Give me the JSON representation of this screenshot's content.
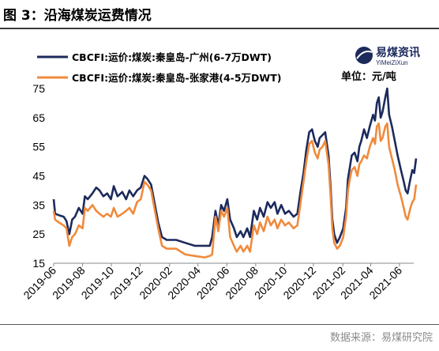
{
  "header": {
    "figure_label": "图 3：",
    "title": "沿海煤炭运费情况"
  },
  "source": "数据来源：易煤研究院",
  "logo": {
    "name": "易煤资讯",
    "subtitle": "YiMeiZiXun"
  },
  "chart_data": {
    "type": "line",
    "unit_label": "单位：元/吨",
    "ylim": [
      15,
      75
    ],
    "yticks": [
      15,
      25,
      35,
      45,
      55,
      65,
      75
    ],
    "x_range": [
      "2019-06",
      "2021-07"
    ],
    "xticks": [
      "2019-06",
      "2019-08",
      "2019-10",
      "2019-12",
      "2020-02",
      "2020-04",
      "2020-06",
      "2020-08",
      "2020-10",
      "2020-12",
      "2021-02",
      "2021-04",
      "2021-06"
    ],
    "grid": false,
    "legend_position": "top-left",
    "series": [
      {
        "name": "CBCFI:运价:煤炭:秦皇岛-广州(6-7万DWT)",
        "color": "#1c2a5c",
        "points": [
          [
            "2019-06-01",
            37
          ],
          [
            "2019-06-04",
            32
          ],
          [
            "2019-06-12",
            31.5
          ],
          [
            "2019-06-22",
            31
          ],
          [
            "2019-06-28",
            29.5
          ],
          [
            "2019-07-04",
            25
          ],
          [
            "2019-07-10",
            30
          ],
          [
            "2019-07-16",
            31
          ],
          [
            "2019-07-24",
            34
          ],
          [
            "2019-08-01",
            32
          ],
          [
            "2019-08-06",
            38
          ],
          [
            "2019-08-12",
            37
          ],
          [
            "2019-08-22",
            39
          ],
          [
            "2019-08-30",
            41
          ],
          [
            "2019-09-06",
            40
          ],
          [
            "2019-09-14",
            38
          ],
          [
            "2019-09-22",
            39
          ],
          [
            "2019-09-30",
            37
          ],
          [
            "2019-10-06",
            41.5
          ],
          [
            "2019-10-14",
            38
          ],
          [
            "2019-10-24",
            39.5
          ],
          [
            "2019-11-01",
            37
          ],
          [
            "2019-11-08",
            40
          ],
          [
            "2019-11-16",
            38
          ],
          [
            "2019-11-24",
            40
          ],
          [
            "2019-12-02",
            41
          ],
          [
            "2019-12-10",
            45
          ],
          [
            "2019-12-16",
            44
          ],
          [
            "2019-12-24",
            42
          ],
          [
            "2020-01-01",
            35
          ],
          [
            "2020-01-08",
            29
          ],
          [
            "2020-01-16",
            24
          ],
          [
            "2020-01-26",
            23
          ],
          [
            "2020-02-15",
            23
          ],
          [
            "2020-03-05",
            22
          ],
          [
            "2020-03-25",
            21
          ],
          [
            "2020-04-15",
            21
          ],
          [
            "2020-04-26",
            21
          ],
          [
            "2020-05-01",
            24
          ],
          [
            "2020-05-08",
            33
          ],
          [
            "2020-05-14",
            28
          ],
          [
            "2020-05-20",
            35
          ],
          [
            "2020-05-26",
            33
          ],
          [
            "2020-06-02",
            37
          ],
          [
            "2020-06-08",
            30
          ],
          [
            "2020-06-16",
            27
          ],
          [
            "2020-06-22",
            24
          ],
          [
            "2020-06-30",
            26
          ],
          [
            "2020-07-06",
            24
          ],
          [
            "2020-07-14",
            27
          ],
          [
            "2020-07-20",
            24
          ],
          [
            "2020-07-28",
            33
          ],
          [
            "2020-08-04",
            30
          ],
          [
            "2020-08-10",
            34
          ],
          [
            "2020-08-18",
            31
          ],
          [
            "2020-08-26",
            36
          ],
          [
            "2020-09-02",
            34
          ],
          [
            "2020-09-10",
            36
          ],
          [
            "2020-09-16",
            32
          ],
          [
            "2020-09-24",
            35
          ],
          [
            "2020-10-02",
            32
          ],
          [
            "2020-10-10",
            33
          ],
          [
            "2020-10-20",
            31
          ],
          [
            "2020-10-28",
            32
          ],
          [
            "2020-11-04",
            40
          ],
          [
            "2020-11-10",
            46
          ],
          [
            "2020-11-16",
            54
          ],
          [
            "2020-11-22",
            60
          ],
          [
            "2020-11-28",
            61
          ],
          [
            "2020-12-04",
            57
          ],
          [
            "2020-12-10",
            55
          ],
          [
            "2020-12-14",
            58
          ],
          [
            "2020-12-20",
            59
          ],
          [
            "2020-12-26",
            60
          ],
          [
            "2021-01-02",
            52
          ],
          [
            "2021-01-06",
            42
          ],
          [
            "2021-01-10",
            30
          ],
          [
            "2021-01-14",
            25
          ],
          [
            "2021-01-20",
            22
          ],
          [
            "2021-01-26",
            24
          ],
          [
            "2021-02-02",
            27
          ],
          [
            "2021-02-08",
            34
          ],
          [
            "2021-02-12",
            44
          ],
          [
            "2021-02-16",
            48
          ],
          [
            "2021-02-20",
            52
          ],
          [
            "2021-02-26",
            53
          ],
          [
            "2021-03-04",
            50
          ],
          [
            "2021-03-08",
            55
          ],
          [
            "2021-03-12",
            57
          ],
          [
            "2021-03-18",
            61
          ],
          [
            "2021-03-24",
            58
          ],
          [
            "2021-03-30",
            62
          ],
          [
            "2021-04-06",
            66
          ],
          [
            "2021-04-10",
            64
          ],
          [
            "2021-04-14",
            70
          ],
          [
            "2021-04-18",
            72
          ],
          [
            "2021-04-22",
            65
          ],
          [
            "2021-04-26",
            67
          ],
          [
            "2021-05-02",
            72
          ],
          [
            "2021-05-06",
            75
          ],
          [
            "2021-05-10",
            66
          ],
          [
            "2021-05-16",
            62
          ],
          [
            "2021-05-22",
            57
          ],
          [
            "2021-05-28",
            52
          ],
          [
            "2021-06-04",
            47
          ],
          [
            "2021-06-10",
            43
          ],
          [
            "2021-06-14",
            40
          ],
          [
            "2021-06-18",
            39
          ],
          [
            "2021-06-24",
            44
          ],
          [
            "2021-06-28",
            47
          ],
          [
            "2021-07-02",
            46
          ],
          [
            "2021-07-06",
            51
          ]
        ]
      },
      {
        "name": "CBCFI:运价:煤炭:秦皇岛-张家港(4-5万DWT)",
        "color": "#f08a3c",
        "points": [
          [
            "2019-06-01",
            33
          ],
          [
            "2019-06-04",
            30
          ],
          [
            "2019-06-12",
            29
          ],
          [
            "2019-06-22",
            28
          ],
          [
            "2019-06-28",
            27
          ],
          [
            "2019-07-04",
            21
          ],
          [
            "2019-07-10",
            24
          ],
          [
            "2019-07-16",
            25
          ],
          [
            "2019-07-24",
            28
          ],
          [
            "2019-08-01",
            27
          ],
          [
            "2019-08-06",
            34
          ],
          [
            "2019-08-12",
            33
          ],
          [
            "2019-08-22",
            35
          ],
          [
            "2019-08-30",
            33
          ],
          [
            "2019-09-06",
            32
          ],
          [
            "2019-09-14",
            31
          ],
          [
            "2019-09-22",
            32
          ],
          [
            "2019-09-30",
            31
          ],
          [
            "2019-10-06",
            34
          ],
          [
            "2019-10-14",
            31
          ],
          [
            "2019-10-24",
            32
          ],
          [
            "2019-11-01",
            33
          ],
          [
            "2019-11-08",
            34
          ],
          [
            "2019-11-16",
            32
          ],
          [
            "2019-11-24",
            36
          ],
          [
            "2019-12-02",
            37
          ],
          [
            "2019-12-10",
            43
          ],
          [
            "2019-12-16",
            42
          ],
          [
            "2019-12-24",
            40
          ],
          [
            "2020-01-01",
            33
          ],
          [
            "2020-01-08",
            27
          ],
          [
            "2020-01-16",
            21
          ],
          [
            "2020-01-26",
            20
          ],
          [
            "2020-02-15",
            20
          ],
          [
            "2020-03-05",
            18
          ],
          [
            "2020-03-25",
            17.5
          ],
          [
            "2020-04-15",
            17
          ],
          [
            "2020-04-26",
            17.5
          ],
          [
            "2020-05-01",
            18
          ],
          [
            "2020-05-08",
            31
          ],
          [
            "2020-05-14",
            26
          ],
          [
            "2020-05-20",
            33
          ],
          [
            "2020-05-26",
            31
          ],
          [
            "2020-06-02",
            34
          ],
          [
            "2020-06-08",
            24
          ],
          [
            "2020-06-16",
            21
          ],
          [
            "2020-06-22",
            19
          ],
          [
            "2020-06-30",
            21
          ],
          [
            "2020-07-06",
            19
          ],
          [
            "2020-07-14",
            21
          ],
          [
            "2020-07-20",
            19
          ],
          [
            "2020-07-28",
            28
          ],
          [
            "2020-08-04",
            25
          ],
          [
            "2020-08-10",
            29
          ],
          [
            "2020-08-18",
            26
          ],
          [
            "2020-08-26",
            31
          ],
          [
            "2020-09-02",
            28
          ],
          [
            "2020-09-10",
            30
          ],
          [
            "2020-09-16",
            27
          ],
          [
            "2020-09-24",
            30
          ],
          [
            "2020-10-02",
            28
          ],
          [
            "2020-10-10",
            29
          ],
          [
            "2020-10-20",
            27
          ],
          [
            "2020-10-28",
            28
          ],
          [
            "2020-11-04",
            36
          ],
          [
            "2020-11-10",
            43
          ],
          [
            "2020-11-16",
            50
          ],
          [
            "2020-11-22",
            56
          ],
          [
            "2020-11-28",
            57
          ],
          [
            "2020-12-04",
            53
          ],
          [
            "2020-12-10",
            51
          ],
          [
            "2020-12-14",
            54
          ],
          [
            "2020-12-20",
            55
          ],
          [
            "2020-12-26",
            57
          ],
          [
            "2021-01-02",
            49
          ],
          [
            "2021-01-06",
            39
          ],
          [
            "2021-01-10",
            27
          ],
          [
            "2021-01-14",
            22
          ],
          [
            "2021-01-20",
            20
          ],
          [
            "2021-01-26",
            21
          ],
          [
            "2021-02-02",
            24
          ],
          [
            "2021-02-08",
            31
          ],
          [
            "2021-02-12",
            40
          ],
          [
            "2021-02-16",
            44
          ],
          [
            "2021-02-20",
            47
          ],
          [
            "2021-02-26",
            48
          ],
          [
            "2021-03-04",
            45
          ],
          [
            "2021-03-08",
            49
          ],
          [
            "2021-03-12",
            50
          ],
          [
            "2021-03-18",
            52
          ],
          [
            "2021-03-24",
            51
          ],
          [
            "2021-03-30",
            55
          ],
          [
            "2021-04-06",
            58
          ],
          [
            "2021-04-10",
            56
          ],
          [
            "2021-04-14",
            62
          ],
          [
            "2021-04-18",
            63
          ],
          [
            "2021-04-22",
            57
          ],
          [
            "2021-04-26",
            58
          ],
          [
            "2021-05-02",
            62
          ],
          [
            "2021-05-06",
            63
          ],
          [
            "2021-05-10",
            55
          ],
          [
            "2021-05-16",
            51
          ],
          [
            "2021-05-22",
            47
          ],
          [
            "2021-05-28",
            42
          ],
          [
            "2021-06-04",
            38
          ],
          [
            "2021-06-10",
            34
          ],
          [
            "2021-06-14",
            31
          ],
          [
            "2021-06-18",
            30
          ],
          [
            "2021-06-24",
            34
          ],
          [
            "2021-06-28",
            36
          ],
          [
            "2021-07-02",
            37
          ],
          [
            "2021-07-06",
            42
          ]
        ]
      }
    ]
  }
}
